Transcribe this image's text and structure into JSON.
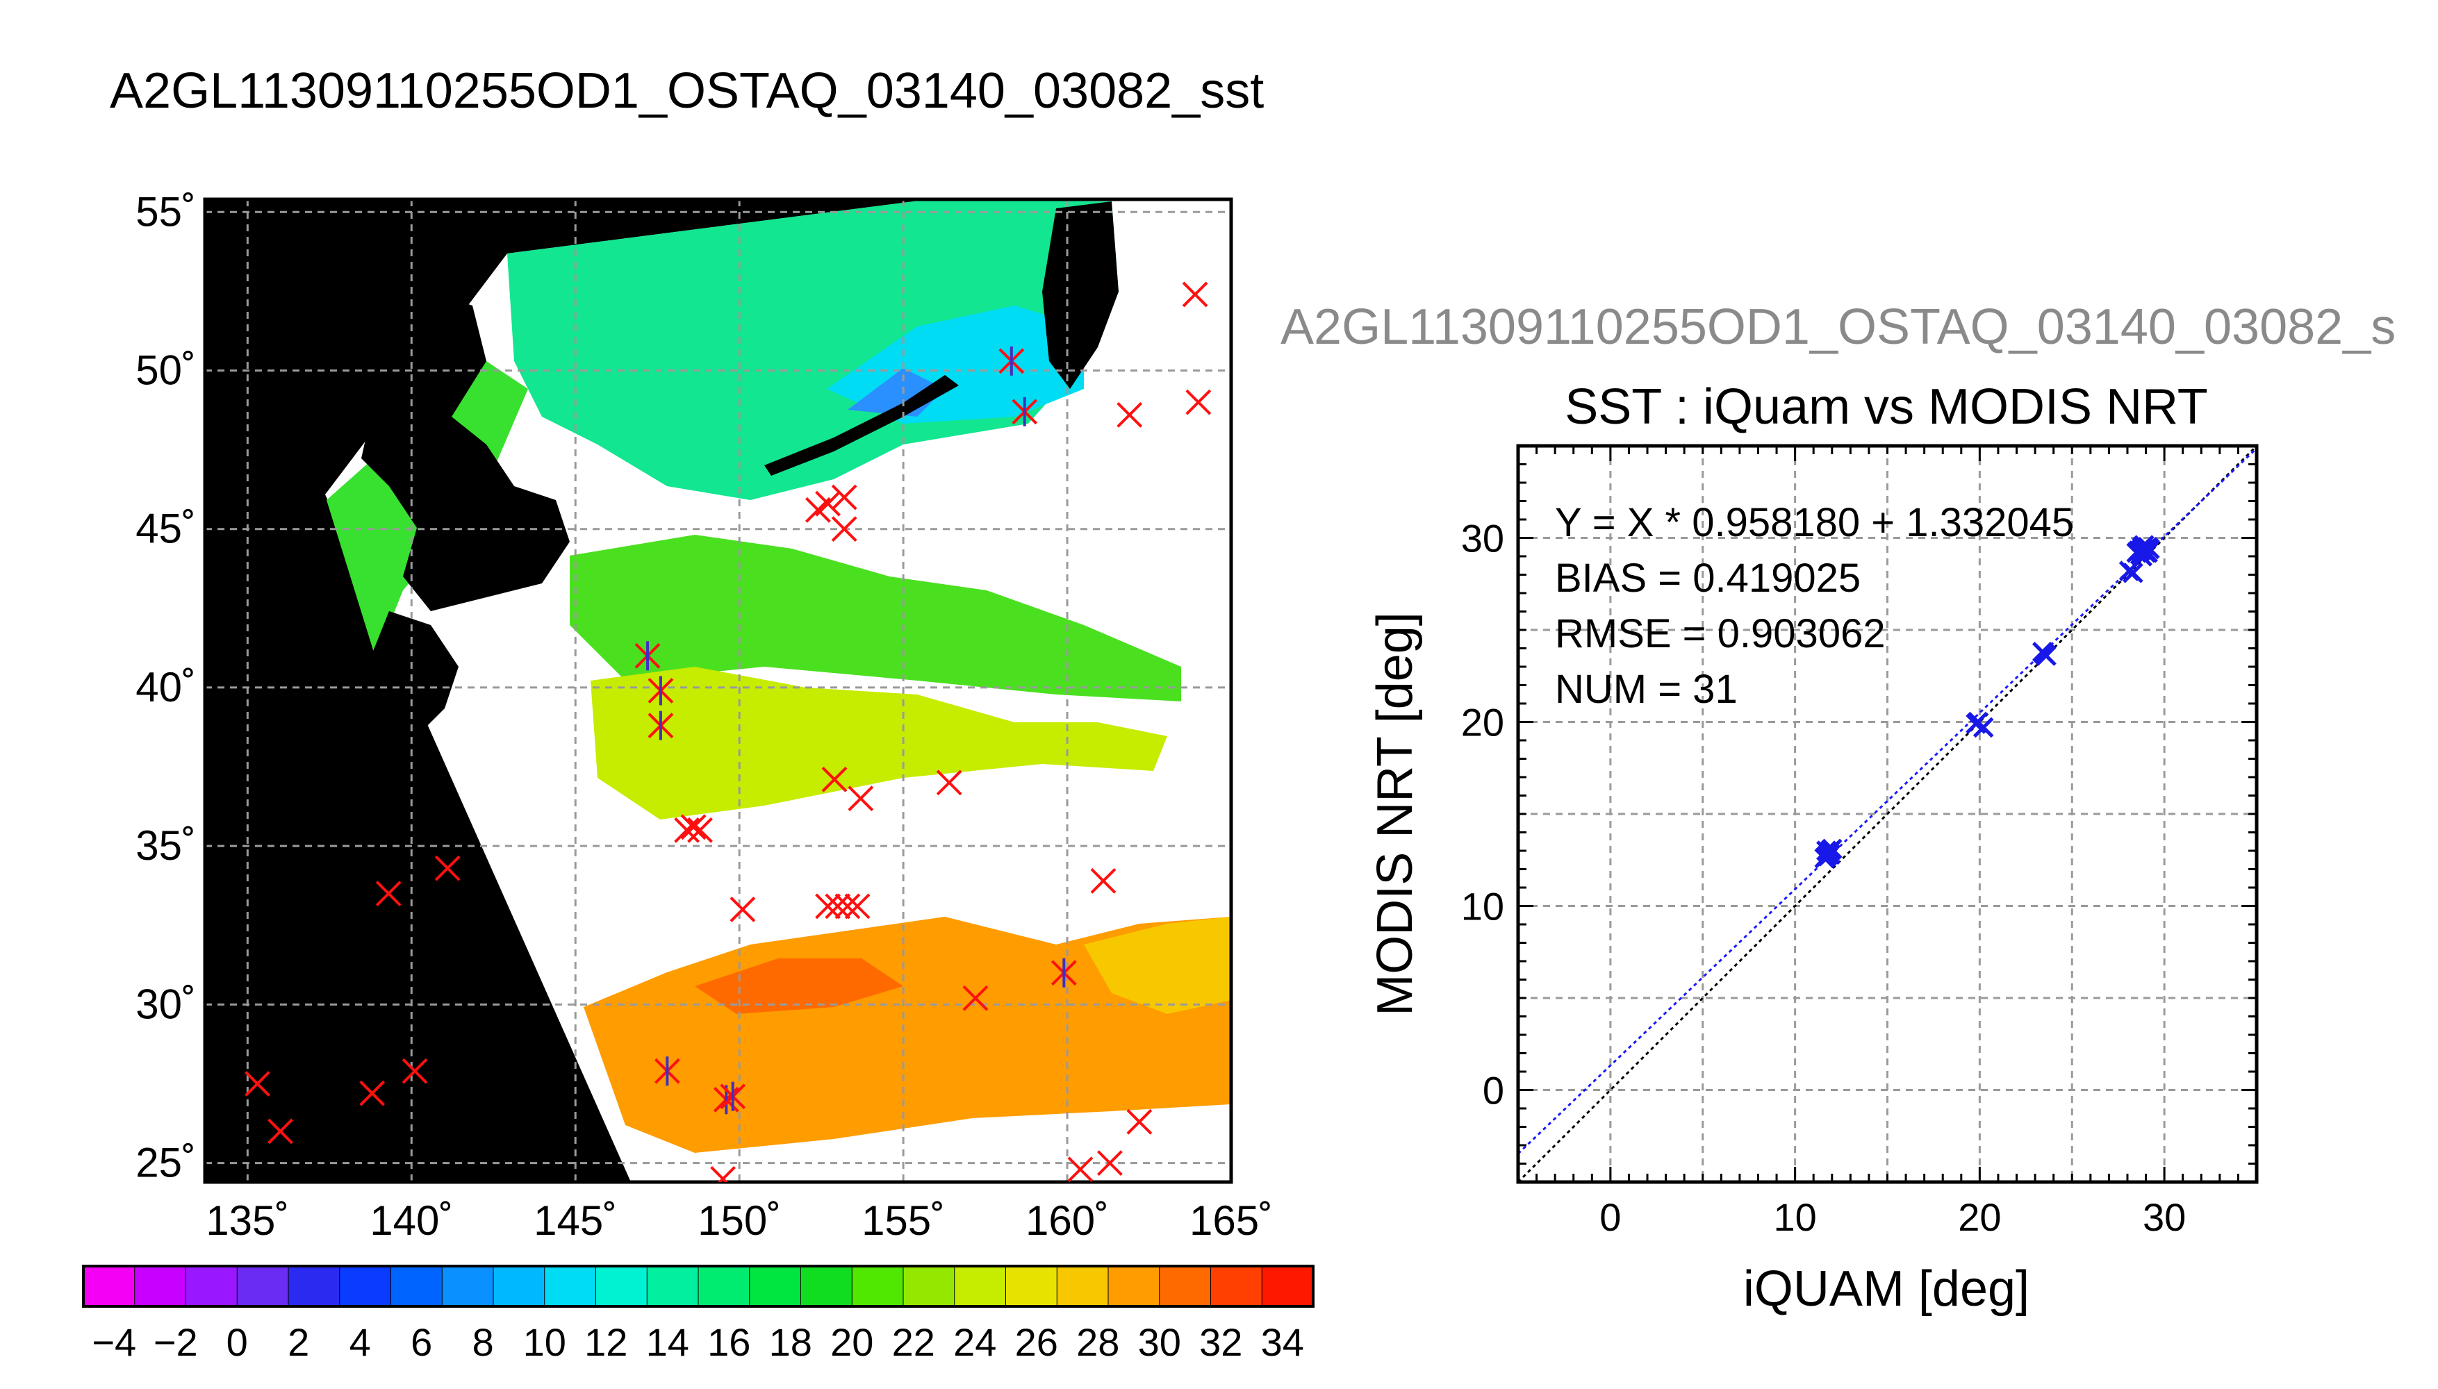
{
  "title": "A2GL11309110255OD1_OSTAQ_03140_03082_sst",
  "second_title": "A2GL11309110255OD1_OSTAQ_03140_03082_s",
  "chart_data": [
    {
      "type": "map",
      "lon_ticks": [
        "135˚",
        "140˚",
        "145˚",
        "150˚",
        "155˚",
        "160˚",
        "165˚"
      ],
      "lat_ticks": [
        "55˚",
        "50˚",
        "45˚",
        "40˚",
        "35˚",
        "30˚",
        "25˚"
      ],
      "lon_values": [
        135,
        140,
        145,
        150,
        155,
        160,
        165
      ],
      "lat_values": [
        55,
        50,
        45,
        40,
        35,
        30,
        25
      ],
      "xlim": [
        133.7,
        165.0
      ],
      "ylim": [
        24.4,
        55.4
      ],
      "grid": true,
      "colorbar": {
        "labels": [
          "−4",
          "−2",
          "0",
          "2",
          "4",
          "6",
          "8",
          "10",
          "12",
          "14",
          "16",
          "18",
          "20",
          "22",
          "24",
          "26",
          "28",
          "30",
          "32",
          "34"
        ],
        "range": [
          -5,
          35
        ],
        "colors": [
          "#f300f5",
          "#c800ff",
          "#9a18ff",
          "#6a2bf2",
          "#2a2af0",
          "#0a3cff",
          "#0064ff",
          "#0a90ff",
          "#00b8ff",
          "#00dcf4",
          "#00f2d2",
          "#00f0a0",
          "#00ec70",
          "#00e640",
          "#10dd20",
          "#50e800",
          "#94e800",
          "#c6ec00",
          "#e8e200",
          "#f7c800",
          "#ff9c00",
          "#ff6a00",
          "#ff4000",
          "#ff1800"
        ]
      },
      "markers_red_x": [
        [
          163.9,
          52.4
        ],
        [
          164.0,
          49.0
        ],
        [
          161.9,
          48.6
        ],
        [
          152.4,
          45.6
        ],
        [
          152.7,
          45.8
        ],
        [
          153.2,
          46.0
        ],
        [
          153.2,
          45.0
        ],
        [
          152.9,
          37.1
        ],
        [
          153.7,
          36.5
        ],
        [
          156.4,
          37.0
        ],
        [
          148.4,
          35.5
        ],
        [
          148.6,
          35.6
        ],
        [
          148.8,
          35.5
        ],
        [
          150.1,
          33.0
        ],
        [
          152.7,
          33.1
        ],
        [
          153.0,
          33.1
        ],
        [
          153.3,
          33.1
        ],
        [
          153.6,
          33.1
        ],
        [
          161.1,
          33.9
        ],
        [
          141.1,
          34.3
        ],
        [
          139.3,
          33.5
        ],
        [
          157.2,
          30.2
        ],
        [
          135.3,
          27.5
        ],
        [
          136.0,
          26.0
        ],
        [
          138.8,
          27.2
        ],
        [
          140.1,
          27.9
        ],
        [
          162.2,
          26.3
        ],
        [
          161.3,
          25.0
        ],
        [
          160.4,
          24.8
        ],
        [
          149.5,
          24.5
        ]
      ],
      "markers_star": [
        [
          158.3,
          50.3
        ],
        [
          158.7,
          48.7
        ],
        [
          147.2,
          41.0
        ],
        [
          147.6,
          39.9
        ],
        [
          147.6,
          38.8
        ],
        [
          159.9,
          31.0
        ],
        [
          147.8,
          27.9
        ],
        [
          149.6,
          27.0
        ],
        [
          149.8,
          27.1
        ]
      ]
    },
    {
      "type": "scatter",
      "title": "SST : iQuam vs MODIS NRT",
      "xlabel": "iQUAM [deg]",
      "ylabel": "MODIS NRT [deg]",
      "xlim": [
        -5,
        35
      ],
      "ylim": [
        -5,
        35
      ],
      "ticks": [
        0,
        10,
        20,
        30
      ],
      "tick_labels": [
        "0",
        "10",
        "20",
        "30"
      ],
      "grid": true,
      "annotations": [
        "Y = X * 0.958180 + 1.332045",
        "BIAS = 0.419025",
        "RMSE = 0.903062",
        "NUM = 31"
      ],
      "fit": {
        "slope": 0.95818,
        "intercept": 1.332045
      },
      "points": [
        [
          11.7,
          13.0
        ],
        [
          11.9,
          12.8
        ],
        [
          11.6,
          12.6
        ],
        [
          11.8,
          12.9
        ],
        [
          12.0,
          13.1
        ],
        [
          11.7,
          12.7
        ],
        [
          11.9,
          13.0
        ],
        [
          11.8,
          12.8
        ],
        [
          19.8,
          19.9
        ],
        [
          20.2,
          19.7
        ],
        [
          19.9,
          20.0
        ],
        [
          23.4,
          23.8
        ],
        [
          23.6,
          23.6
        ],
        [
          23.5,
          23.7
        ],
        [
          28.1,
          28.2
        ],
        [
          28.3,
          28.1
        ],
        [
          28.5,
          29.2
        ],
        [
          28.8,
          29.4
        ],
        [
          29.0,
          29.3
        ],
        [
          29.1,
          29.5
        ],
        [
          28.7,
          29.1
        ],
        [
          28.9,
          29.4
        ],
        [
          29.0,
          29.2
        ],
        [
          28.6,
          29.3
        ],
        [
          28.8,
          29.0
        ],
        [
          29.2,
          29.4
        ],
        [
          28.9,
          29.6
        ],
        [
          28.7,
          29.3
        ],
        [
          28.8,
          29.5
        ],
        [
          29.1,
          29.2
        ],
        [
          28.9,
          29.3
        ]
      ]
    }
  ]
}
